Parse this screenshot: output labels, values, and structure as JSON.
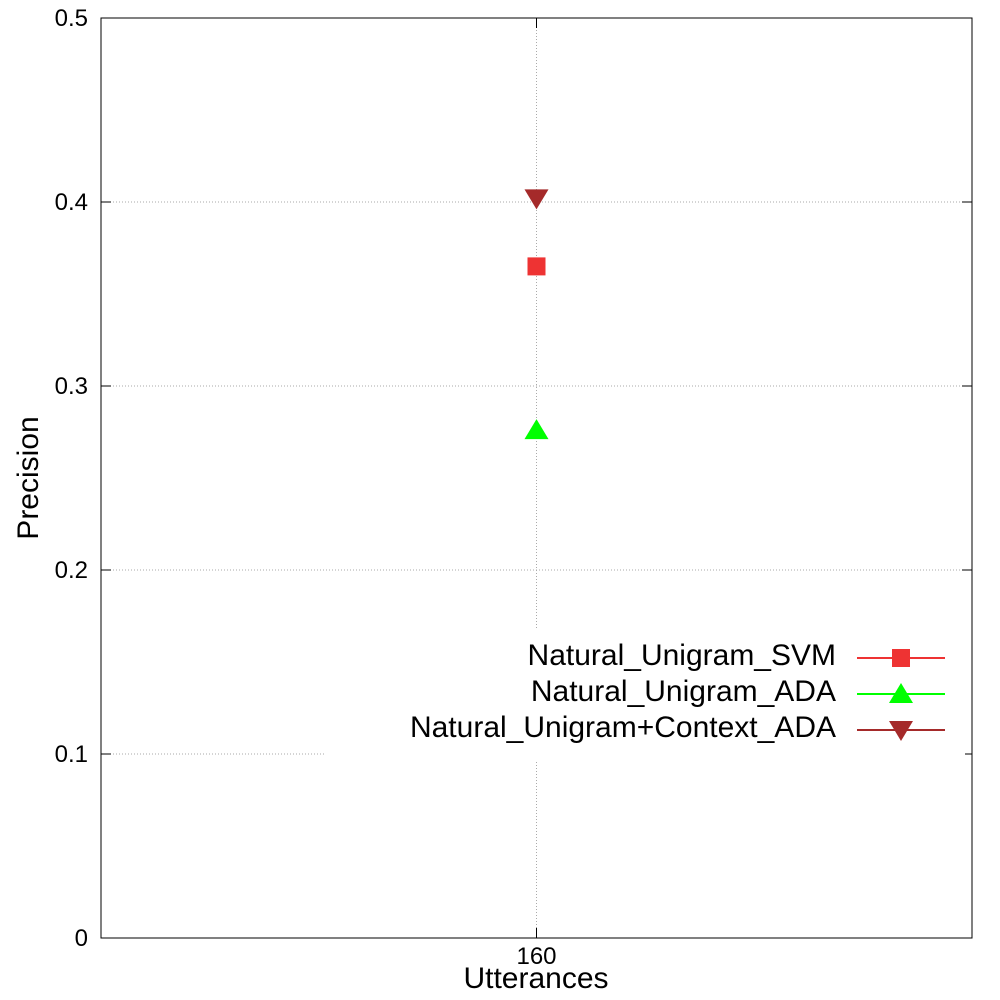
{
  "chart_data": {
    "type": "scatter",
    "xlabel": "Utterances",
    "ylabel": "Precision",
    "x_ticks": [
      "160"
    ],
    "y_ticks": [
      "0",
      "0.1",
      "0.2",
      "0.3",
      "0.4",
      "0.5"
    ],
    "ylim": [
      0,
      0.5
    ],
    "grid": true,
    "legend_position": "bottom-right",
    "series": [
      {
        "name": "Natural_Unigram_SVM",
        "marker": "square",
        "color": "#ee3333",
        "x": 160,
        "y": 0.365
      },
      {
        "name": "Natural_Unigram_ADA",
        "marker": "triangle-up",
        "color": "#00ff00",
        "x": 160,
        "y": 0.276
      },
      {
        "name": "Natural_Unigram+Context_ADA",
        "marker": "triangle-down",
        "color": "#a52a2a",
        "x": 160,
        "y": 0.402
      }
    ]
  }
}
